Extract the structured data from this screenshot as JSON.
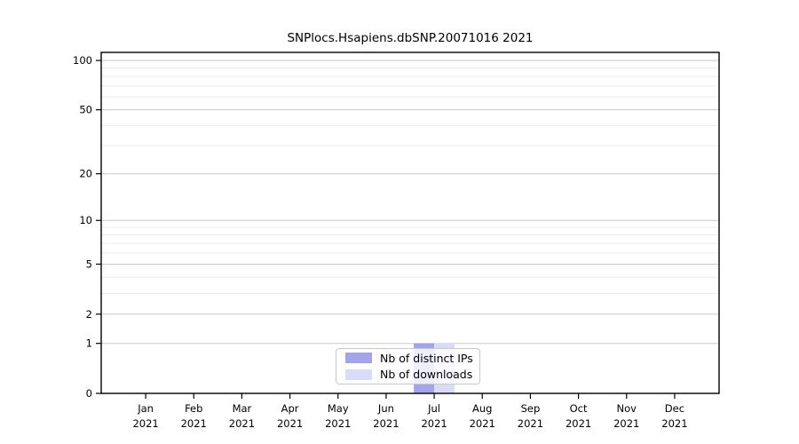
{
  "chart_data": {
    "type": "bar",
    "title": "SNPlocs.Hsapiens.dbSNP.20071016 2021",
    "categories": [
      {
        "month": "Jan",
        "year": "2021"
      },
      {
        "month": "Feb",
        "year": "2021"
      },
      {
        "month": "Mar",
        "year": "2021"
      },
      {
        "month": "Apr",
        "year": "2021"
      },
      {
        "month": "May",
        "year": "2021"
      },
      {
        "month": "Jun",
        "year": "2021"
      },
      {
        "month": "Jul",
        "year": "2021"
      },
      {
        "month": "Aug",
        "year": "2021"
      },
      {
        "month": "Sep",
        "year": "2021"
      },
      {
        "month": "Oct",
        "year": "2021"
      },
      {
        "month": "Nov",
        "year": "2021"
      },
      {
        "month": "Dec",
        "year": "2021"
      }
    ],
    "series": [
      {
        "name": "Nb of distinct IPs",
        "color": "#a3a4ee",
        "values": [
          0,
          0,
          0,
          0,
          0,
          0,
          1,
          0,
          0,
          0,
          0,
          0
        ]
      },
      {
        "name": "Nb of downloads",
        "color": "#d9dbf8",
        "values": [
          0,
          0,
          0,
          0,
          0,
          0,
          1,
          0,
          0,
          0,
          0,
          0
        ]
      }
    ],
    "xlabel": "",
    "ylabel": "",
    "y_scale": "log10(value+1)",
    "y_ticks": [
      0,
      1,
      2,
      5,
      10,
      20,
      50,
      100
    ],
    "y_minor_gridlines": [
      3,
      4,
      6,
      7,
      8,
      9,
      30,
      40,
      60,
      70,
      80,
      90
    ],
    "ylim": [
      0,
      112
    ],
    "grid": "horizontal",
    "legend_position": "bottom-center"
  },
  "colors": {
    "bar_distinct_ips": "#a3a4ee",
    "bar_downloads": "#d9dbf8",
    "grid_major": "#c9c9c9",
    "grid_minor": "#ebebeb",
    "axis": "#000000",
    "background": "#ffffff"
  }
}
